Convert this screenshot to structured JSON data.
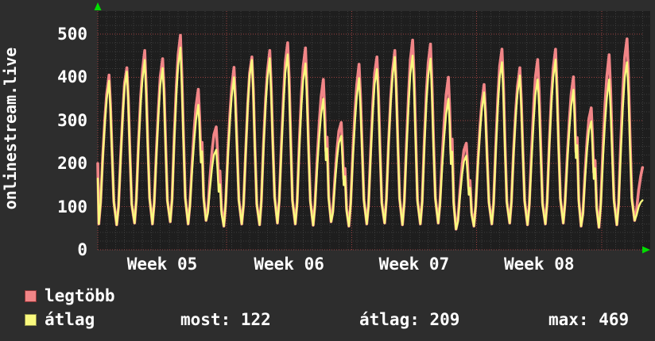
{
  "title_vertical": "onlinestream.live",
  "legend": {
    "max_label": "legtöbb",
    "avg_label": "átlag"
  },
  "stats": {
    "most": "most: 122",
    "atlag": "átlag: 209",
    "max": "max: 469"
  },
  "colors": {
    "page_bg": "#2d2d2d",
    "plot_bg": "#1e1e1e",
    "grid_minor": "#3c3c3c",
    "grid_major": "#9a4040",
    "text": "#ffffff",
    "series_max_line": "#f18587",
    "series_avg_line": "#f9f97e",
    "legend_max_fill": "#f18587",
    "legend_max_border": "#93383a",
    "legend_avg_fill": "#f9f97e",
    "legend_avg_border": "#8f8f4a",
    "arrow": "#00dd00"
  },
  "chart_data": {
    "type": "line",
    "title": "onlinestream.live",
    "x_tick_labels": [
      "Week 05",
      "Week 06",
      "Week 07",
      "Week 08"
    ],
    "y_tick_labels": [
      0,
      100,
      200,
      300,
      400,
      500
    ],
    "ylim": [
      0,
      540
    ],
    "x_structure": "31 consecutive days, one diurnal spike per day; red dotted vertical gridlines mark week starts; last day is a partial rising edge at the right border",
    "grid": {
      "style": "dotted",
      "minor_step_y": 20,
      "major_step_y": 100,
      "minor_step_x_days": 0.5,
      "major_step_x_days": 7
    },
    "legend_position": "bottom-left",
    "series": [
      {
        "name": "legtöbb",
        "role": "daily maximum",
        "color": "#f18587",
        "daily_peaks": [
          405,
          422,
          462,
          443,
          497,
          372,
          285,
          423,
          447,
          462,
          480,
          468,
          395,
          295,
          430,
          447,
          462,
          486,
          477,
          400,
          247,
          383,
          465,
          422,
          441,
          465,
          401,
          329,
          452,
          489,
          210
        ]
      },
      {
        "name": "átlag",
        "role": "daily average",
        "color": "#f9f97e",
        "daily_peaks": [
          392,
          413,
          440,
          421,
          469,
          336,
          232,
          400,
          440,
          444,
          453,
          432,
          350,
          264,
          398,
          419,
          447,
          450,
          443,
          350,
          218,
          365,
          435,
          404,
          395,
          441,
          371,
          298,
          395,
          435,
          125
        ],
        "stats": {
          "most": 122,
          "atlag": 209,
          "max": 469
        }
      }
    ],
    "daily_troughs": [
      60,
      58,
      62,
      60,
      65,
      60,
      68,
      55,
      60,
      58,
      62,
      60,
      57,
      65,
      55,
      60,
      62,
      58,
      60,
      62,
      48,
      55,
      60,
      62,
      58,
      60,
      62,
      55,
      52,
      58,
      68
    ],
    "weekend_day_indices": [
      5,
      6,
      12,
      13,
      19,
      20,
      26,
      27
    ],
    "first_edge_values": {
      "legtöbb": 200,
      "átlag": 165
    },
    "last_day_partial": true
  }
}
